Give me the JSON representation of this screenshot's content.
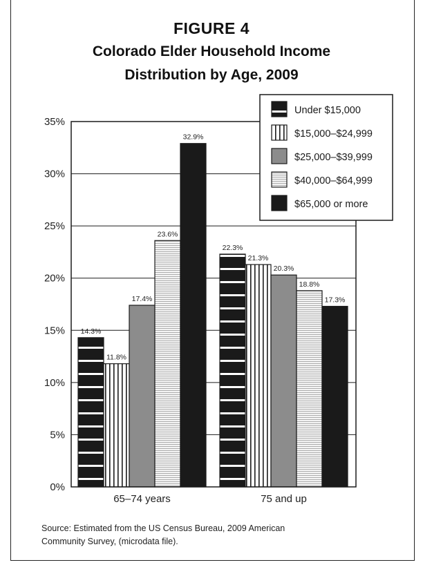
{
  "figure": {
    "label": "FIGURE 4",
    "title_line1": "Colorado Elder Household Income",
    "title_line2": "Distribution by Age, 2009",
    "source_line1": "Source: Estimated from the US Census Bureau, 2009 American",
    "source_line2": "Community Survey, (microdata file)."
  },
  "chart_data": {
    "type": "bar",
    "title": "FIGURE 4 Colorado Elder Household Income Distribution by Age, 2009",
    "categories": [
      "65–74 years",
      "75 and up"
    ],
    "series": [
      {
        "name": "Under $15,000",
        "values": [
          14.3,
          22.3
        ],
        "labels": [
          "14.3%",
          "22.3%"
        ],
        "pattern": "black-horizontal-stripes"
      },
      {
        "name": "$15,000–$24,999",
        "values": [
          11.8,
          21.3
        ],
        "labels": [
          "11.8%",
          "21.3%"
        ],
        "pattern": "white-vertical-stripes"
      },
      {
        "name": "$25,000–$39,999",
        "values": [
          17.4,
          20.3
        ],
        "labels": [
          "17.4%",
          "20.3%"
        ],
        "pattern": "solid-gray"
      },
      {
        "name": "$40,000–$64,999",
        "values": [
          23.6,
          18.8
        ],
        "labels": [
          "23.6%",
          "18.8%"
        ],
        "pattern": "light-horizontal-lines"
      },
      {
        "name": "$65,000 or more",
        "values": [
          32.9,
          17.3
        ],
        "labels": [
          "32.9%",
          "17.3%"
        ],
        "pattern": "solid-black"
      }
    ],
    "y_ticks": [
      "0%",
      "5%",
      "10%",
      "15%",
      "20%",
      "25%",
      "30%",
      "35%"
    ],
    "ylim": [
      0,
      35
    ],
    "grid": true,
    "legend_position": "top-right",
    "colors": {
      "black": "#1a1a1a",
      "gray": "#8c8c8c",
      "light": "#f2f2f2",
      "white": "#ffffff"
    }
  }
}
